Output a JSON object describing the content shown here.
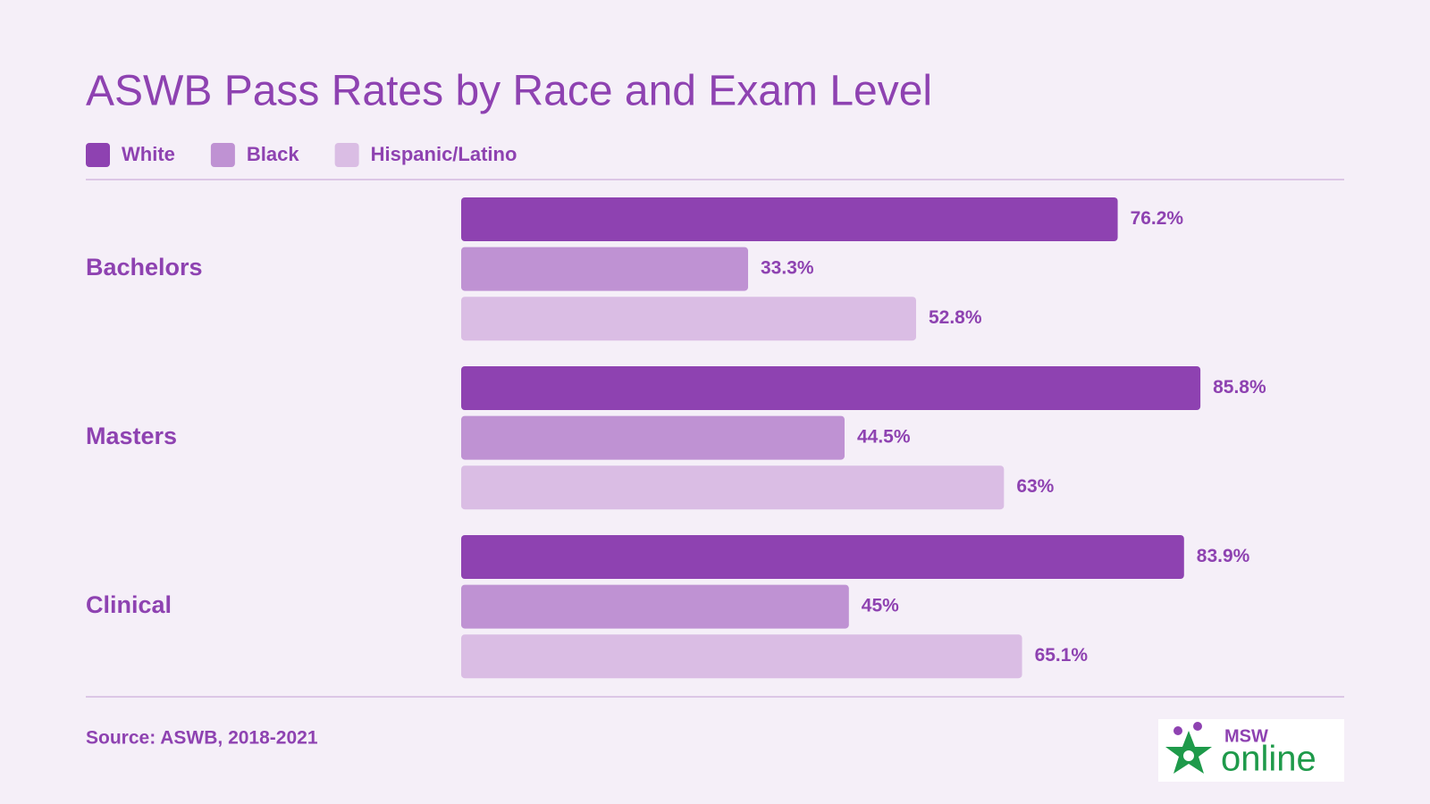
{
  "chart_data": {
    "type": "bar",
    "orientation": "horizontal",
    "title": "ASWB Pass Rates by Race and Exam Level",
    "categories": [
      "Bachelors",
      "Masters",
      "Clinical"
    ],
    "series": [
      {
        "name": "White",
        "color": "#8e42b1",
        "values": [
          76.2,
          85.8,
          83.9
        ],
        "value_labels": [
          "76.2%",
          "85.8%",
          "83.9%"
        ]
      },
      {
        "name": "Black",
        "color": "#bf92d3",
        "values": [
          33.3,
          44.5,
          45
        ],
        "value_labels": [
          "33.3%",
          "44.5%",
          "45%"
        ]
      },
      {
        "name": "Hispanic/Latino",
        "color": "#dabde4",
        "values": [
          52.8,
          63,
          65.1
        ],
        "value_labels": [
          "52.8%",
          "63%",
          "65.1%"
        ]
      }
    ],
    "source": "Source: ASWB, 2018-2021",
    "logo": {
      "top": "MSW",
      "bottom": "online"
    }
  }
}
